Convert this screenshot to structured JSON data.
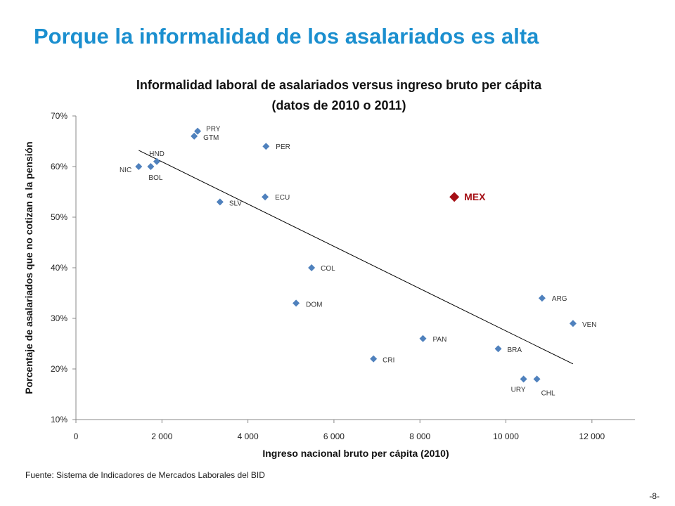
{
  "slide": {
    "title": "Porque la informalidad de los asalariados es alta",
    "source": "Fuente: Sistema de Indicadores de Mercados Laborales del BID",
    "page_number": "-8-"
  },
  "colors": {
    "title": "#1b8fcf",
    "points": "#4f81bd",
    "highlight": "#a50f15",
    "trendline": "#000000"
  },
  "chart_data": {
    "type": "scatter",
    "title": "Informalidad laboral de asalariados versus ingreso bruto per cápita",
    "subtitle": "(datos de 2010 o 2011)",
    "xlabel": "Ingreso nacional bruto per cápita (2010)",
    "ylabel": "Porcentaje de asalariados que no cotizan a la pensión",
    "xlim": [
      0,
      13000
    ],
    "ylim": [
      0.1,
      0.7
    ],
    "x_ticks": [
      0,
      2000,
      4000,
      6000,
      8000,
      10000,
      12000
    ],
    "x_tick_labels": [
      "0",
      "2 000",
      "4 000",
      "6 000",
      "8 000",
      "10 000",
      "12 000"
    ],
    "y_ticks": [
      0.1,
      0.2,
      0.3,
      0.4,
      0.5,
      0.6,
      0.7
    ],
    "y_tick_labels": [
      "10%",
      "20%",
      "30%",
      "40%",
      "50%",
      "60%",
      "70%"
    ],
    "grid": false,
    "points": [
      {
        "label": "PRY",
        "x": 2830,
        "y": 0.67
      },
      {
        "label": "GTM",
        "x": 2750,
        "y": 0.66
      },
      {
        "label": "PER",
        "x": 4420,
        "y": 0.64
      },
      {
        "label": "HND",
        "x": 1880,
        "y": 0.61
      },
      {
        "label": "NIC",
        "x": 1460,
        "y": 0.6
      },
      {
        "label": "BOL",
        "x": 1740,
        "y": 0.6
      },
      {
        "label": "ECU",
        "x": 4400,
        "y": 0.54
      },
      {
        "label": "SLV",
        "x": 3350,
        "y": 0.53
      },
      {
        "label": "COL",
        "x": 5480,
        "y": 0.4
      },
      {
        "label": "DOM",
        "x": 5120,
        "y": 0.33
      },
      {
        "label": "ARG",
        "x": 10840,
        "y": 0.34
      },
      {
        "label": "VEN",
        "x": 11560,
        "y": 0.29
      },
      {
        "label": "PAN",
        "x": 8070,
        "y": 0.26
      },
      {
        "label": "BRA",
        "x": 9820,
        "y": 0.24
      },
      {
        "label": "CRI",
        "x": 6920,
        "y": 0.22
      },
      {
        "label": "URY",
        "x": 10410,
        "y": 0.18
      },
      {
        "label": "CHL",
        "x": 10720,
        "y": 0.18
      }
    ],
    "highlight": {
      "label": "MEX",
      "x": 8800,
      "y": 0.54
    },
    "trendline": {
      "x": [
        1460,
        11560
      ],
      "y": [
        0.632,
        0.21
      ]
    }
  }
}
